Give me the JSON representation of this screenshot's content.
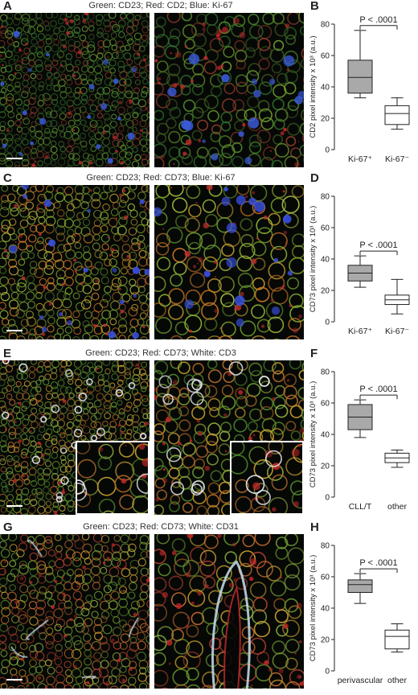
{
  "rows": [
    {
      "letter_left": "A",
      "letter_right": "B",
      "caption": "Green: CD23; Red: CD2; Blue: Ki-67",
      "style": "ki67",
      "has_insets": false,
      "chart_data": {
        "type": "box",
        "ylabel": "CD2 pixel intensity x 10³ (a.u.)",
        "ylim": [
          0,
          80
        ],
        "yticks": [
          "0",
          "20",
          "40",
          "60",
          "80"
        ],
        "categories": [
          "Ki-67⁺",
          "Ki-67⁻"
        ],
        "boxes": [
          {
            "min": 33,
            "q1": 36,
            "median": 46,
            "q3": 57,
            "max": 76,
            "fill": "#a9a9a9"
          },
          {
            "min": 13,
            "q1": 16,
            "median": 23,
            "q3": 28,
            "max": 33,
            "fill": "#ffffff"
          }
        ],
        "annotation": "P < .0001"
      }
    },
    {
      "letter_left": "C",
      "letter_right": "D",
      "caption": "Green: CD23; Red: CD73; Blue: Ki-67",
      "style": "ki67b",
      "has_insets": false,
      "chart_data": {
        "type": "box",
        "ylabel": "CD73 pixel intensity x 10³ (a.u.)",
        "ylim": [
          0,
          80
        ],
        "yticks": [
          "0",
          "20",
          "40",
          "60",
          "80"
        ],
        "categories": [
          "Ki-67⁺",
          "Ki-67⁻"
        ],
        "boxes": [
          {
            "min": 22,
            "q1": 26,
            "median": 31,
            "q3": 36,
            "max": 42,
            "fill": "#a9a9a9"
          },
          {
            "min": 5,
            "q1": 11,
            "median": 14,
            "q3": 17,
            "max": 27,
            "fill": "#ffffff"
          }
        ],
        "annotation": "P < .0001"
      }
    },
    {
      "letter_left": "E",
      "letter_right": "F",
      "caption": "Green: CD23; Red: CD73; White: CD3",
      "style": "cd3",
      "has_insets": true,
      "chart_data": {
        "type": "box",
        "ylabel": "CD73 pixel intensity x 10³ (a.u.)",
        "ylim": [
          0,
          80
        ],
        "yticks": [
          "0",
          "20",
          "40",
          "60",
          "80"
        ],
        "categories": [
          "CLL/T",
          "other"
        ],
        "boxes": [
          {
            "min": 38,
            "q1": 43,
            "median": 51,
            "q3": 59,
            "max": 62,
            "fill": "#a9a9a9"
          },
          {
            "min": 19,
            "q1": 22,
            "median": 25,
            "q3": 28,
            "max": 30,
            "fill": "#ffffff"
          }
        ],
        "annotation": "P < .0001"
      }
    },
    {
      "letter_left": "G",
      "letter_right": "H",
      "caption": "Green: CD23; Red: CD73; White: CD31",
      "style": "cd31",
      "has_insets": false,
      "chart_data": {
        "type": "box",
        "ylabel": "CD73 pixel intensity x 10³ (a.u.)",
        "ylim": [
          0,
          80
        ],
        "yticks": [
          "0",
          "20",
          "40",
          "60",
          "80"
        ],
        "categories": [
          "perivascular",
          "other"
        ],
        "boxes": [
          {
            "min": 43,
            "q1": 50,
            "median": 55,
            "q3": 58,
            "max": 62,
            "fill": "#a9a9a9"
          },
          {
            "min": 12,
            "q1": 14,
            "median": 22,
            "q3": 26,
            "max": 30,
            "fill": "#ffffff"
          }
        ],
        "annotation": "P < .0001"
      }
    }
  ]
}
